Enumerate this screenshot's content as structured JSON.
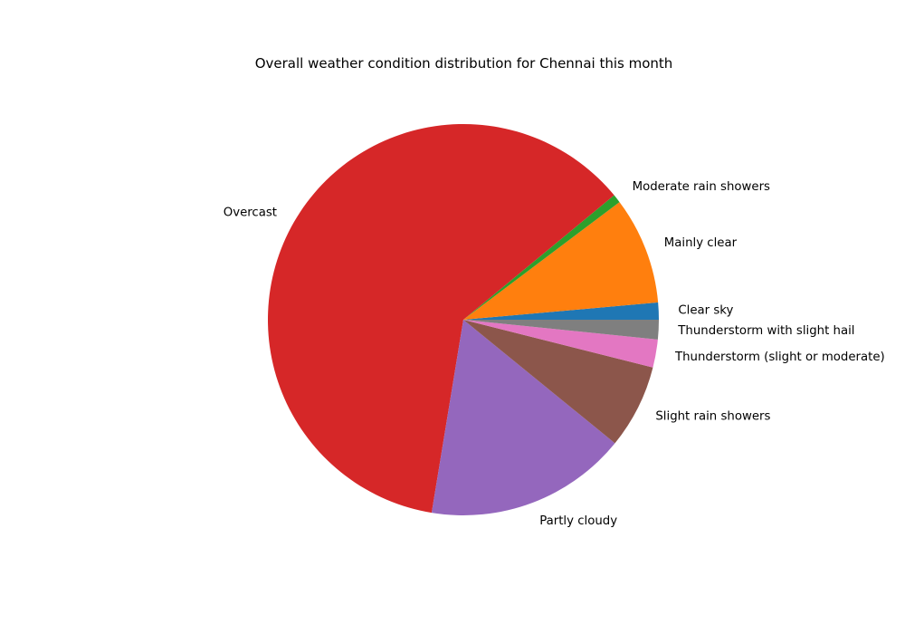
{
  "chart_data": {
    "type": "pie",
    "title": "Overall weather condition distribution for Chennai this month",
    "start_angle_deg": 0,
    "direction": "counterclockwise",
    "slices": [
      {
        "label": "Clear sky",
        "value": 1.4,
        "color": "#1f77b4"
      },
      {
        "label": "Mainly clear",
        "value": 8.8,
        "color": "#ff7f0e"
      },
      {
        "label": "Moderate rain showers",
        "value": 0.7,
        "color": "#2ca02c"
      },
      {
        "label": "Overcast",
        "value": 61.0,
        "color": "#d62728"
      },
      {
        "label": "Partly cloudy",
        "value": 16.6,
        "color": "#9467bd"
      },
      {
        "label": "Slight rain showers",
        "value": 6.9,
        "color": "#8c564b"
      },
      {
        "label": "Thunderstorm (slight or moderate)",
        "value": 2.3,
        "color": "#e377c2"
      },
      {
        "label": "Thunderstorm with slight hail",
        "value": 1.6,
        "color": "#7f7f7f"
      }
    ]
  }
}
